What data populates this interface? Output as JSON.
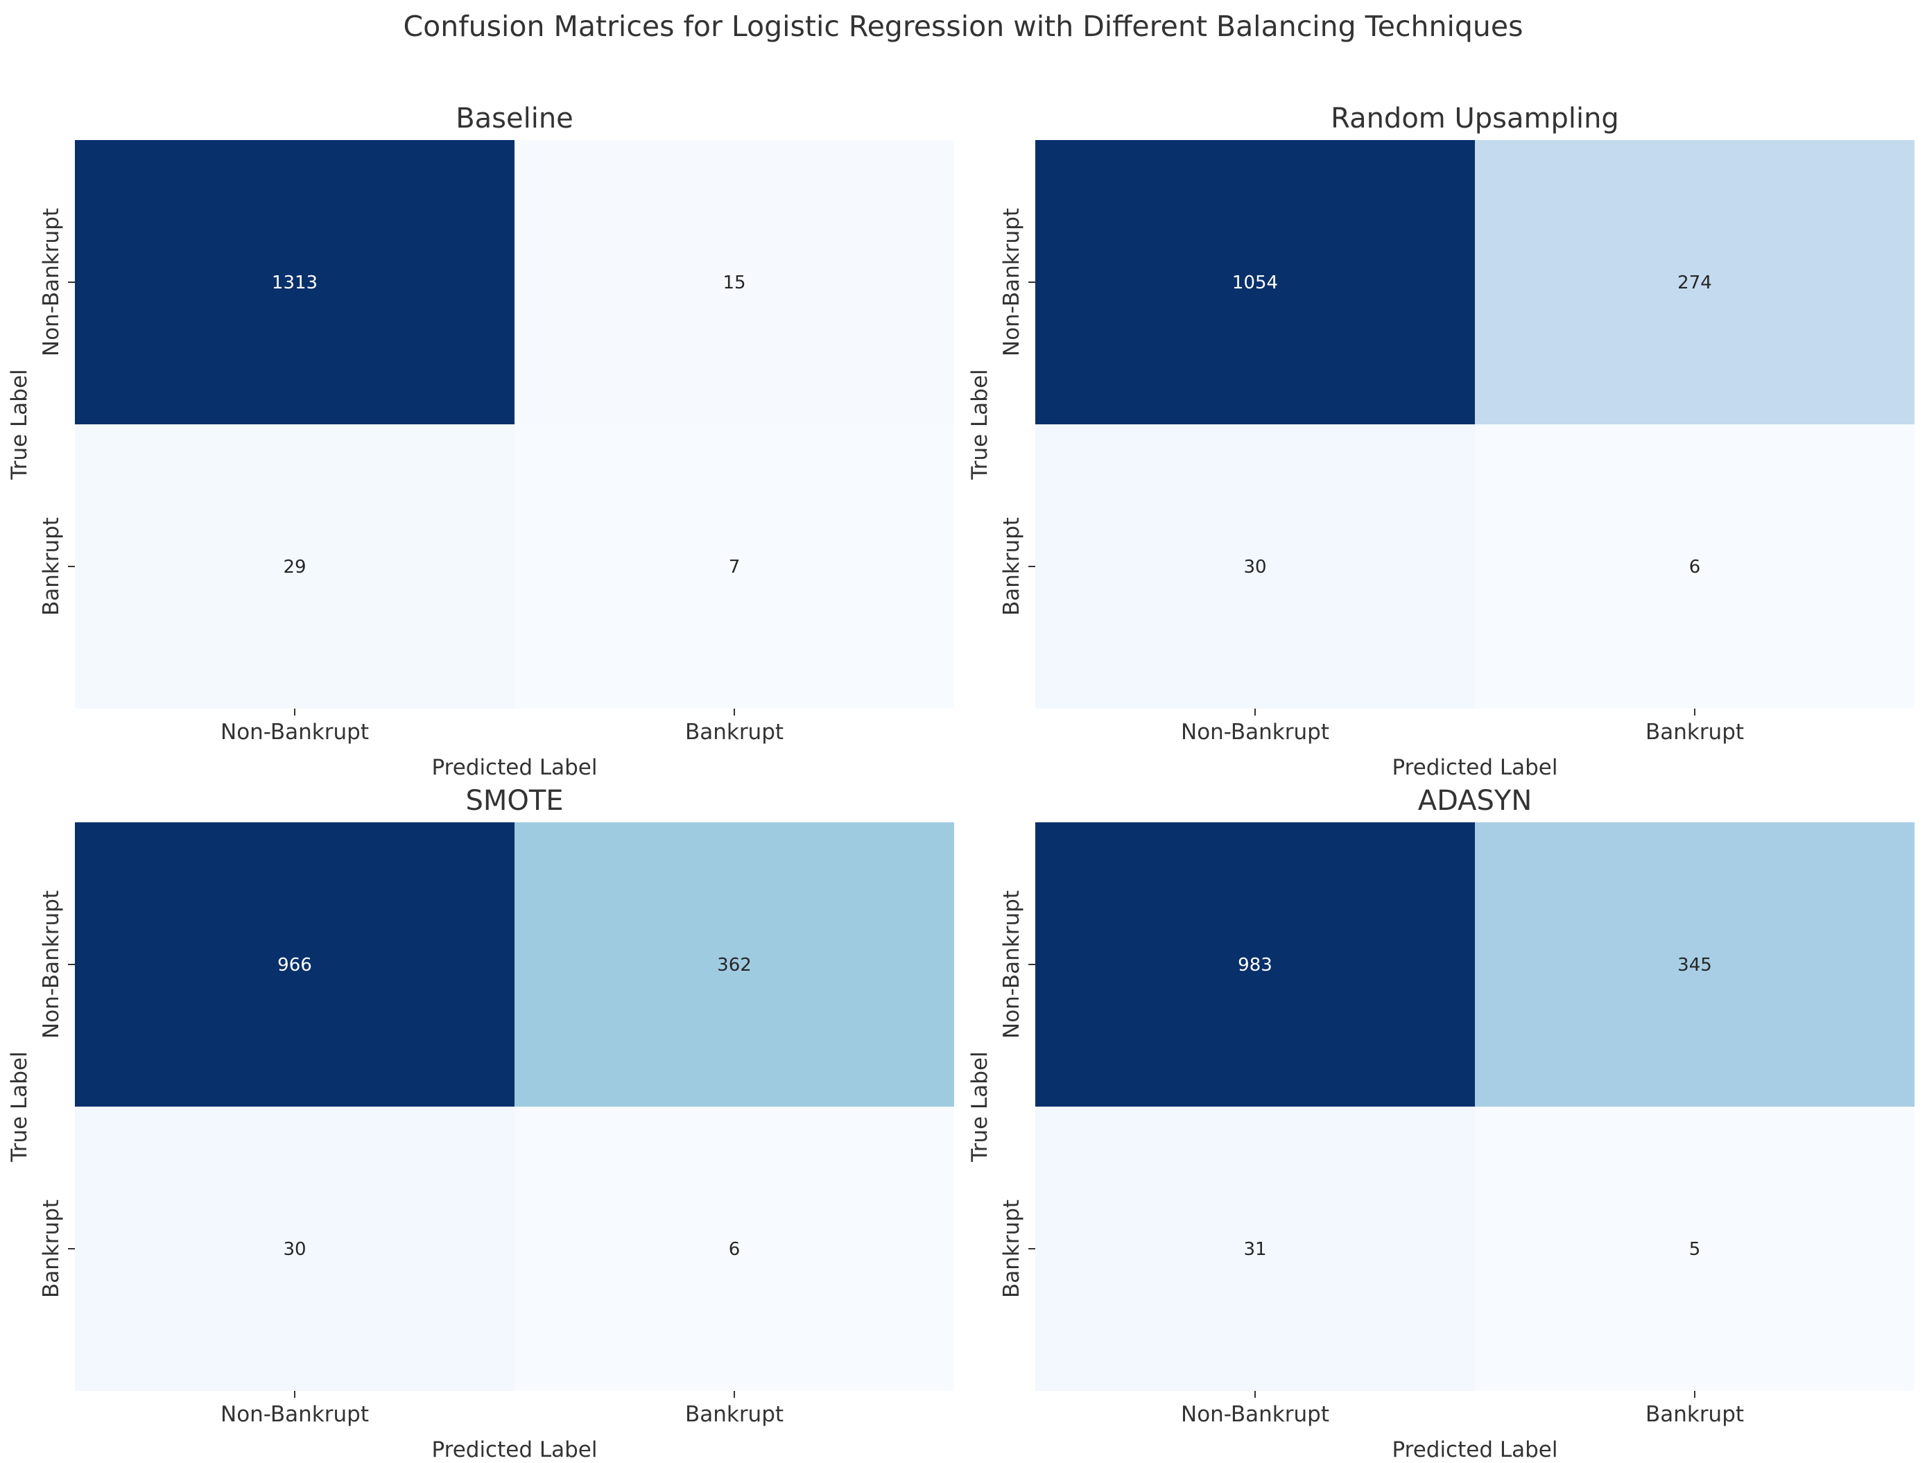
{
  "figure": {
    "suptitle": "Confusion Matrices for Logistic Regression with Different Balancing Techniques"
  },
  "chart_data": [
    {
      "type": "heatmap",
      "title": "Baseline",
      "xlabel": "Predicted Label",
      "ylabel": "True Label",
      "x_categories": [
        "Non-Bankrupt",
        "Bankrupt"
      ],
      "y_categories": [
        "Non-Bankrupt",
        "Bankrupt"
      ],
      "values": [
        [
          1313,
          15
        ],
        [
          29,
          7
        ]
      ],
      "colormap": "Blues",
      "colorbar": false
    },
    {
      "type": "heatmap",
      "title": "Random Upsampling",
      "xlabel": "Predicted Label",
      "ylabel": "True Label",
      "x_categories": [
        "Non-Bankrupt",
        "Bankrupt"
      ],
      "y_categories": [
        "Non-Bankrupt",
        "Bankrupt"
      ],
      "values": [
        [
          1054,
          274
        ],
        [
          30,
          6
        ]
      ],
      "colormap": "Blues",
      "colorbar": false
    },
    {
      "type": "heatmap",
      "title": "SMOTE",
      "xlabel": "Predicted Label",
      "ylabel": "True Label",
      "x_categories": [
        "Non-Bankrupt",
        "Bankrupt"
      ],
      "y_categories": [
        "Non-Bankrupt",
        "Bankrupt"
      ],
      "values": [
        [
          966,
          362
        ],
        [
          30,
          6
        ]
      ],
      "colormap": "Blues",
      "colorbar": false
    },
    {
      "type": "heatmap",
      "title": "ADASYN",
      "xlabel": "Predicted Label",
      "ylabel": "True Label",
      "x_categories": [
        "Non-Bankrupt",
        "Bankrupt"
      ],
      "y_categories": [
        "Non-Bankrupt",
        "Bankrupt"
      ],
      "values": [
        [
          983,
          345
        ],
        [
          31,
          5
        ]
      ],
      "colormap": "Blues",
      "colorbar": false
    }
  ]
}
